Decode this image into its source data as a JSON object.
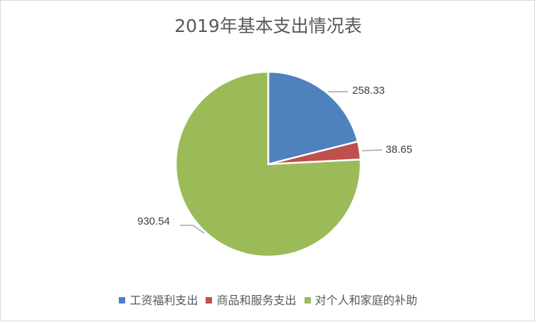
{
  "chart_data": {
    "type": "pie",
    "title": "2019年基本支出情况表",
    "categories": [
      "工资福利支出",
      "商品和服务支出",
      "对个人和家庭的补助"
    ],
    "values": [
      258.33,
      38.65,
      930.54
    ],
    "colors": [
      "#4f81bd",
      "#c0504d",
      "#9bbb59"
    ],
    "data_labels": [
      "258.33",
      "38.65",
      "930.54"
    ],
    "legend_position": "bottom",
    "start_angle": "12 o'clock, clockwise"
  },
  "legend": {
    "items": [
      {
        "label": "工资福利支出",
        "color": "#4f81bd"
      },
      {
        "label": "商品和服务支出",
        "color": "#c0504d"
      },
      {
        "label": "对个人和家庭的补助",
        "color": "#9bbb59"
      }
    ]
  }
}
